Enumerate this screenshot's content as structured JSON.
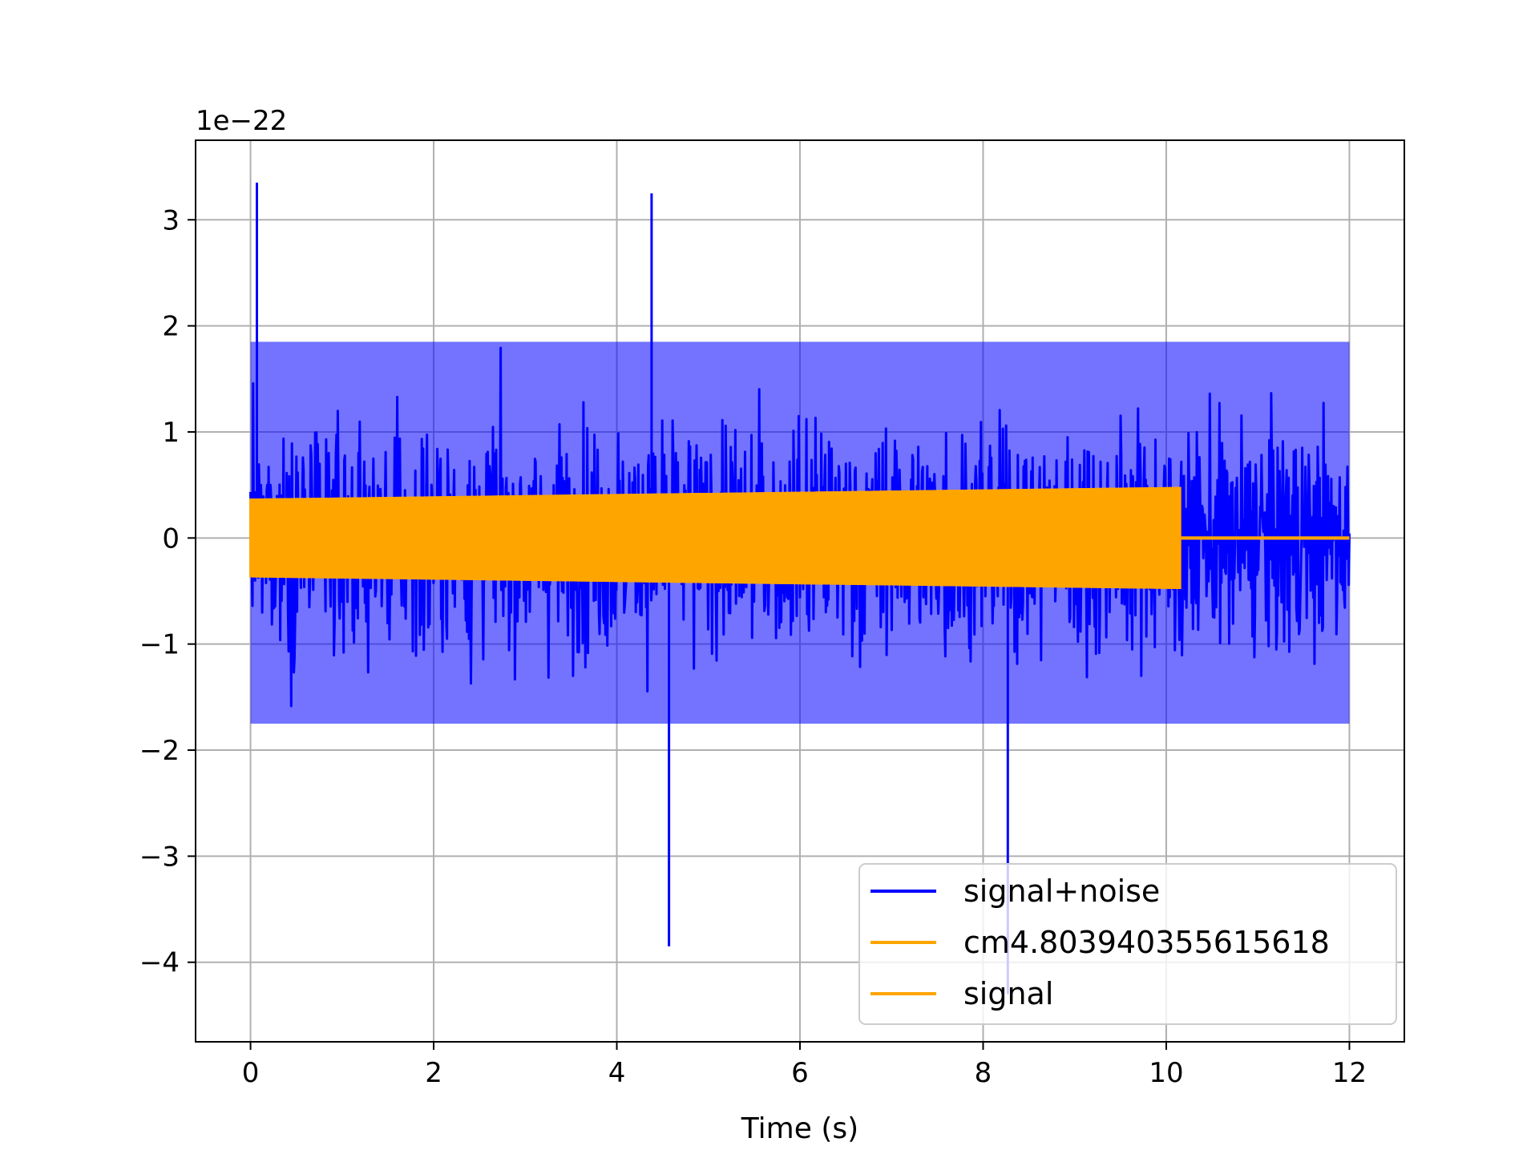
{
  "chart_data": {
    "type": "line",
    "xlabel": "Time (s)",
    "ylabel": "",
    "y_offset_text": "1e−22",
    "xlim": [
      -0.6,
      12.6
    ],
    "ylim": [
      -4.75,
      3.75
    ],
    "x_ticks": [
      0,
      2,
      4,
      6,
      8,
      10,
      12
    ],
    "x_tick_labels": [
      "0",
      "2",
      "4",
      "6",
      "8",
      "10",
      "12"
    ],
    "y_ticks": [
      -4,
      -3,
      -2,
      -1,
      0,
      1,
      2,
      3
    ],
    "y_tick_labels": [
      "−4",
      "−3",
      "−2",
      "−1",
      "0",
      "1",
      "2",
      "3"
    ],
    "grid": true,
    "legend_placement": "lower-right",
    "series": [
      {
        "name": "signal+noise",
        "color": "#0000ff",
        "t_start": 0,
        "t_end": 12,
        "typical_upper": 1.85,
        "typical_lower": -1.75,
        "max": 3.35,
        "max_at": 0.07,
        "min": -4.3,
        "min_at": 8.27
      },
      {
        "name": "cm4.803940355615618",
        "color": "#ffa500",
        "envelope": [
          [
            0,
            0.36
          ],
          [
            10.15,
            0.47
          ]
        ],
        "zero_after": 10.15,
        "t_end": 12
      },
      {
        "name": "signal",
        "color": "#ffa500",
        "envelope": [
          [
            0,
            0.36
          ],
          [
            10.15,
            0.47
          ]
        ],
        "zero_after": 10.15,
        "t_end": 12
      }
    ]
  }
}
